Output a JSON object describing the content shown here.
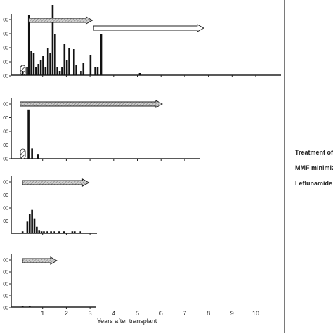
{
  "chart_data": {
    "type": "bar",
    "xlabel": "Years after transplant",
    "x_tick_labels": [
      "1",
      "2",
      "3",
      "4",
      "5",
      "6",
      "7",
      "8",
      "9",
      "10"
    ],
    "legend": [
      "Treatment of",
      "MMF minimiz",
      "Leflunamide"
    ],
    "panels": [
      {
        "y_tick_labels": [
          "00",
          "00",
          "00",
          "00",
          "00"
        ],
        "bars": [
          {
            "x": 0.15,
            "y": 0.3
          },
          {
            "x": 0.34,
            "y": 0.55
          },
          {
            "x": 0.42,
            "y": 4.3
          },
          {
            "x": 0.52,
            "y": 1.75
          },
          {
            "x": 0.62,
            "y": 1.6
          },
          {
            "x": 0.72,
            "y": 0.55
          },
          {
            "x": 0.82,
            "y": 0.8
          },
          {
            "x": 0.92,
            "y": 1.1
          },
          {
            "x": 1.02,
            "y": 1.35
          },
          {
            "x": 1.12,
            "y": 0.55
          },
          {
            "x": 1.22,
            "y": 1.9
          },
          {
            "x": 1.32,
            "y": 1.6
          },
          {
            "x": 1.42,
            "y": 5.0
          },
          {
            "x": 1.52,
            "y": 2.9
          },
          {
            "x": 1.62,
            "y": 0.55
          },
          {
            "x": 1.72,
            "y": 0.3
          },
          {
            "x": 1.82,
            "y": 0.6
          },
          {
            "x": 1.92,
            "y": 2.2
          },
          {
            "x": 2.02,
            "y": 1.1
          },
          {
            "x": 2.12,
            "y": 1.95
          },
          {
            "x": 2.32,
            "y": 1.85
          },
          {
            "x": 2.42,
            "y": 0.75
          },
          {
            "x": 2.62,
            "y": 0.3
          },
          {
            "x": 2.72,
            "y": 0.9
          },
          {
            "x": 3.02,
            "y": 1.4
          },
          {
            "x": 3.22,
            "y": 0.55
          },
          {
            "x": 3.32,
            "y": 0.55
          },
          {
            "x": 3.47,
            "y": 2.95
          },
          {
            "x": 5.1,
            "y": 0.15
          }
        ],
        "arrows": [
          {
            "style": "hatched",
            "x_start": 0.4,
            "x_end": 3.1
          },
          {
            "style": "open",
            "x_start": 3.15,
            "x_end": 7.8
          }
        ],
        "hatched_marker": true
      },
      {
        "y_tick_labels": [
          "00",
          "00",
          "00",
          "00",
          "00"
        ],
        "bars": [
          {
            "x": 0.4,
            "y": 3.6
          },
          {
            "x": 0.55,
            "y": 0.75
          },
          {
            "x": 0.8,
            "y": 0.35
          }
        ],
        "arrows": [
          {
            "style": "hatched",
            "x_start": 0.05,
            "x_end": 6.05
          }
        ],
        "hatched_marker": true
      },
      {
        "y_tick_labels": [
          "00",
          "00",
          "00",
          "00"
        ],
        "bars": [
          {
            "x": 0.15,
            "y": 0.15
          },
          {
            "x": 0.35,
            "y": 0.9
          },
          {
            "x": 0.45,
            "y": 1.5
          },
          {
            "x": 0.55,
            "y": 1.8
          },
          {
            "x": 0.65,
            "y": 1.1
          },
          {
            "x": 0.75,
            "y": 0.5
          },
          {
            "x": 0.85,
            "y": 0.2
          },
          {
            "x": 0.95,
            "y": 0.15
          },
          {
            "x": 1.05,
            "y": 0.15
          },
          {
            "x": 1.2,
            "y": 0.15
          },
          {
            "x": 1.35,
            "y": 0.15
          },
          {
            "x": 1.5,
            "y": 0.15
          },
          {
            "x": 1.7,
            "y": 0.15
          },
          {
            "x": 1.9,
            "y": 0.15
          },
          {
            "x": 2.25,
            "y": 0.15
          },
          {
            "x": 2.35,
            "y": 0.15
          },
          {
            "x": 2.6,
            "y": 0.15
          }
        ],
        "arrows": [
          {
            "style": "hatched",
            "x_start": 0.15,
            "x_end": 2.95
          }
        ],
        "hatched_marker": false
      },
      {
        "y_tick_labels": [
          "00",
          "00",
          "00",
          "00",
          "00"
        ],
        "bars": [
          {
            "x": 0.15,
            "y": 0.1
          },
          {
            "x": 0.45,
            "y": 0.1
          }
        ],
        "arrows": [
          {
            "style": "hatched",
            "x_start": 0.15,
            "x_end": 1.6
          }
        ],
        "hatched_marker": false
      }
    ]
  }
}
